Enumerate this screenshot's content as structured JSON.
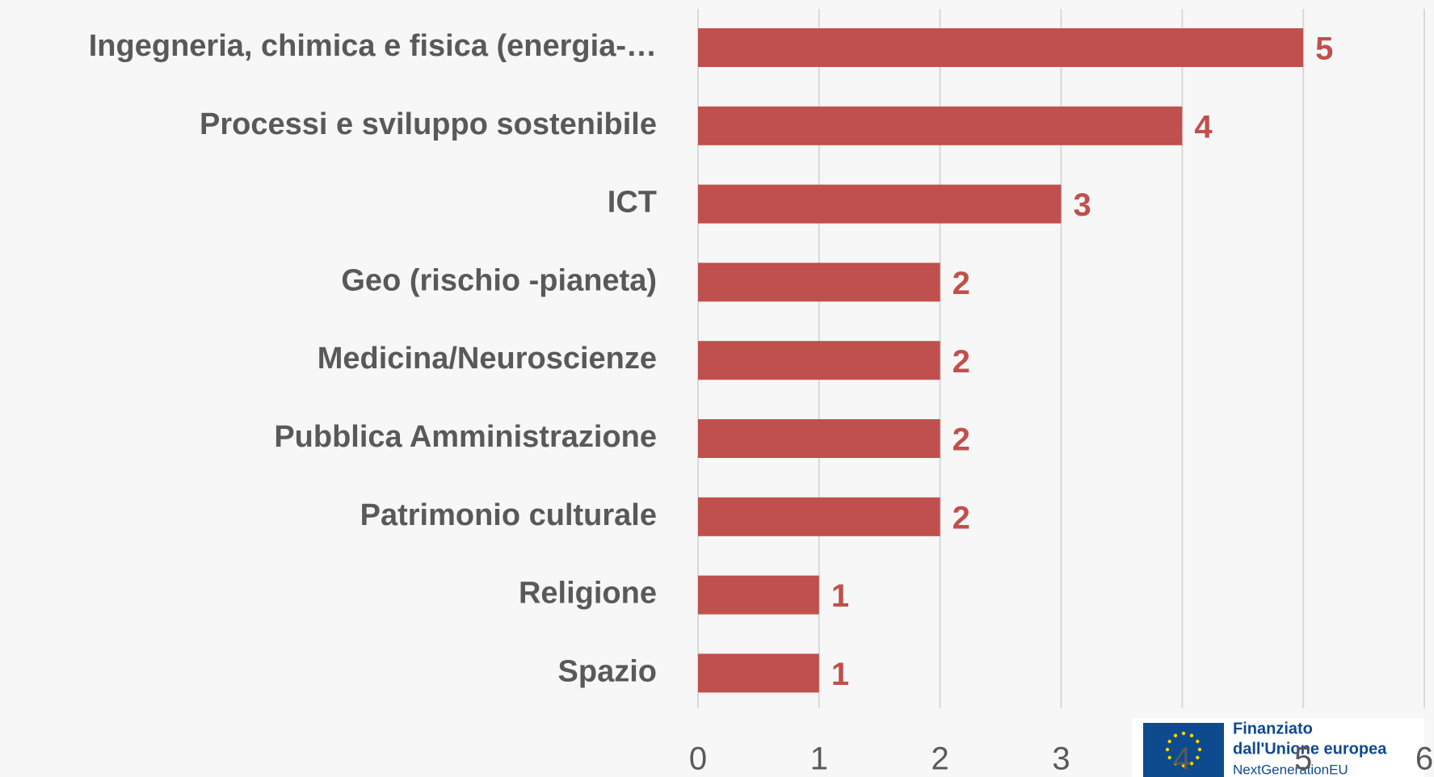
{
  "chart_data": {
    "type": "bar",
    "orientation": "horizontal",
    "categories": [
      "Ingegneria, chimica e fisica (energia-…",
      "Processi e sviluppo sostenibile",
      "ICT",
      "Geo (rischio -pianeta)",
      "Medicina/Neuroscienze",
      "Pubblica Amministrazione",
      "Patrimonio culturale",
      "Religione",
      "Spazio"
    ],
    "values": [
      5,
      4,
      3,
      2,
      2,
      2,
      2,
      1,
      1
    ],
    "color": "#c0504d",
    "xlim": [
      0,
      6
    ],
    "xticks": [
      0,
      1,
      2,
      3,
      4,
      5,
      6
    ],
    "grid": true
  },
  "logo": {
    "lines": [
      "Finanziato",
      "dall'Unione europea",
      "NextGenerationEU"
    ]
  }
}
